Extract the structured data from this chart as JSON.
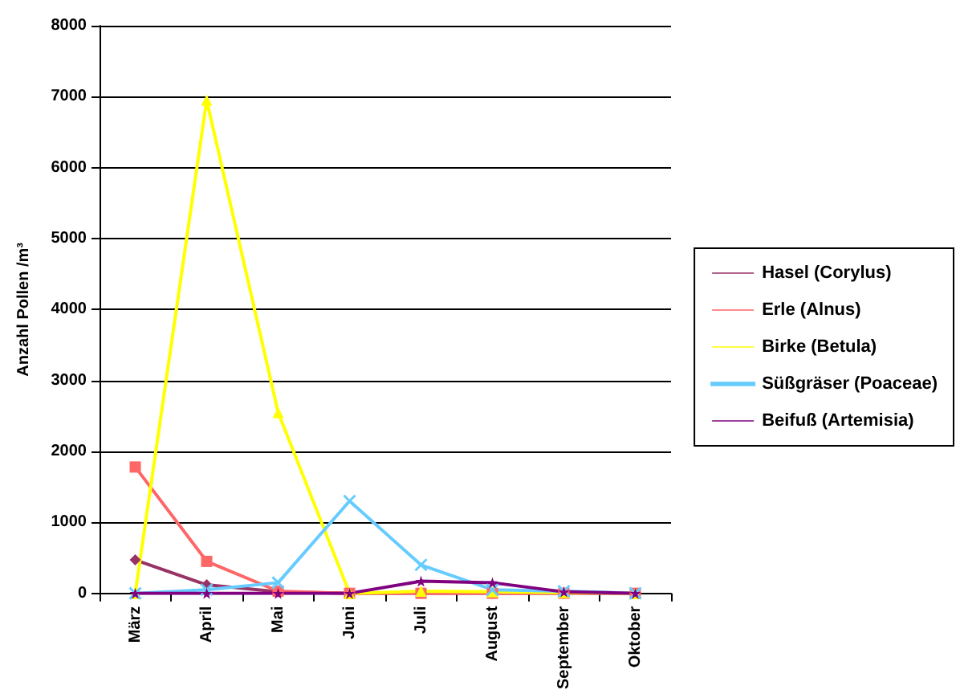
{
  "chart_data": {
    "type": "line",
    "ylabel": "Anzahl Pollen /m³",
    "categories": [
      "März",
      "April",
      "Mai",
      "Juni",
      "Juli",
      "August",
      "September",
      "Oktober"
    ],
    "series": [
      {
        "name": "Hasel (Corylus)",
        "color": "#993366",
        "marker": "diamond",
        "values": [
          470,
          120,
          20,
          0,
          0,
          0,
          0,
          0
        ]
      },
      {
        "name": "Erle (Alnus)",
        "color": "#ff6666",
        "marker": "square",
        "values": [
          1780,
          450,
          30,
          0,
          0,
          0,
          0,
          0
        ]
      },
      {
        "name": "Birke (Betula)",
        "color": "#ffff00",
        "marker": "triangle",
        "values": [
          0,
          6950,
          2550,
          0,
          30,
          20,
          10,
          0
        ]
      },
      {
        "name": "Süßgräser (Poaceae)",
        "color": "#66ccff",
        "marker": "cross",
        "values": [
          0,
          50,
          150,
          1300,
          400,
          50,
          30,
          0
        ]
      },
      {
        "name": "Beifuß (Artemisia)",
        "color": "#800080",
        "marker": "star",
        "values": [
          0,
          0,
          0,
          0,
          170,
          150,
          20,
          0
        ]
      }
    ],
    "ylim": [
      0,
      8000
    ],
    "yticks": [
      0,
      1000,
      2000,
      3000,
      4000,
      5000,
      6000,
      7000,
      8000
    ],
    "grid": "y",
    "legend": "right",
    "line_style": "solid"
  }
}
